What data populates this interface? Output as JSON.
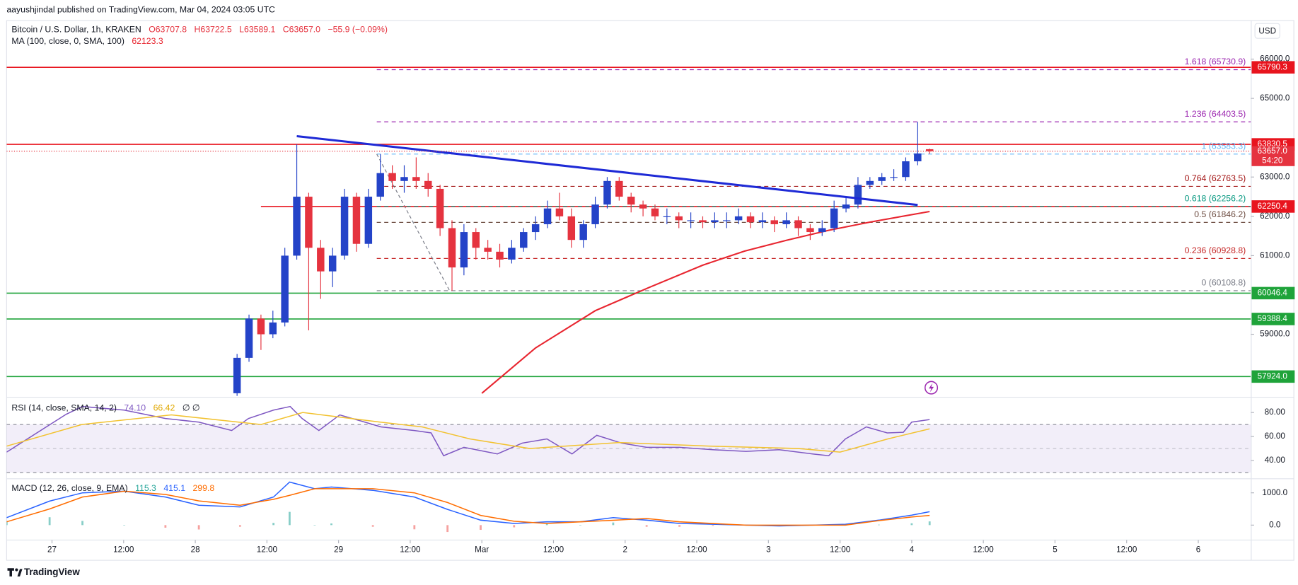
{
  "chart_data": [
    {
      "type": "candlestick",
      "publisher": "aayushjindal published on TradingView.com, Mar 04, 2024 03:05 UTC",
      "title": "Bitcoin / U.S. Dollar, 1h, KRAKEN",
      "ohlc_labels": [
        "O63707.8",
        "H63722.5",
        "L63589.1",
        "C63657.0"
      ],
      "change": "−55.9 (−0.09%)",
      "currency": "USD",
      "up_color": "#2443c8",
      "down_color": "#e5333f",
      "xlim": [
        -7.6,
        200.8
      ],
      "ylim": [
        57430,
        66970
      ],
      "xticks": [
        {
          "value": 0,
          "label": "27"
        },
        {
          "value": 12,
          "label": "12:00"
        },
        {
          "value": 24,
          "label": "28"
        },
        {
          "value": 36,
          "label": "12:00"
        },
        {
          "value": 48,
          "label": "29"
        },
        {
          "value": 60,
          "label": "12:00"
        },
        {
          "value": 72,
          "label": "Mar"
        },
        {
          "value": 84,
          "label": "12:00"
        },
        {
          "value": 96,
          "label": "2"
        },
        {
          "value": 108,
          "label": "12:00"
        },
        {
          "value": 120,
          "label": "3"
        },
        {
          "value": 132,
          "label": "12:00"
        },
        {
          "value": 144,
          "label": "4"
        },
        {
          "value": 156,
          "label": "12:00"
        },
        {
          "value": 168,
          "label": "5"
        },
        {
          "value": 180,
          "label": "12:00"
        },
        {
          "value": 192,
          "label": "6"
        }
      ],
      "yticks": [
        {
          "value": 66000,
          "label": "66000.0"
        },
        {
          "value": 65000,
          "label": "65000.0"
        },
        {
          "value": 63000,
          "label": "63000.0"
        },
        {
          "value": 62000,
          "label": "62000.0"
        },
        {
          "value": 61000,
          "label": "61000.0"
        },
        {
          "value": 59000,
          "label": "59000.0"
        }
      ],
      "grid": false,
      "x": [
        31,
        33,
        35,
        37,
        39,
        41,
        43,
        45,
        47,
        49,
        51,
        53,
        55,
        57,
        59,
        61,
        63,
        65,
        67,
        69,
        71,
        73,
        75,
        77,
        79,
        81,
        83,
        85,
        87,
        89,
        91,
        93,
        95,
        97,
        99,
        101,
        103,
        105,
        107,
        109,
        111,
        113,
        115,
        117,
        119,
        121,
        123,
        125,
        127,
        129,
        131,
        133,
        135,
        137,
        139,
        141,
        143,
        145,
        147
      ],
      "open": [
        57500,
        58400,
        59400,
        59000,
        59300,
        61000,
        62500,
        61200,
        60600,
        61000,
        62500,
        61300,
        62500,
        63100,
        62900,
        63000,
        62900,
        62700,
        61700,
        60700,
        61600,
        61200,
        61100,
        60900,
        61200,
        61600,
        61800,
        62200,
        62000,
        61400,
        61800,
        62300,
        62900,
        62500,
        62300,
        62200,
        62000,
        62000,
        61900,
        61900,
        61850,
        61900,
        61900,
        62000,
        61850,
        61900,
        61800,
        61900,
        61700,
        61600,
        61700,
        62200,
        62300,
        62800,
        62900,
        63000,
        63000,
        63400,
        63707.8
      ],
      "high": [
        58500,
        59500,
        59500,
        59600,
        61200,
        63830,
        62600,
        61400,
        61200,
        62700,
        62600,
        62700,
        63580,
        63300,
        63300,
        63500,
        63100,
        62800,
        61900,
        61800,
        61700,
        61400,
        61300,
        61400,
        61700,
        62000,
        62400,
        62600,
        62200,
        61900,
        62500,
        63000,
        63000,
        62600,
        62400,
        62300,
        62200,
        62100,
        62100,
        62000,
        62100,
        62100,
        62200,
        62100,
        62100,
        62000,
        62100,
        62000,
        61800,
        61900,
        62400,
        62500,
        63000,
        63000,
        63100,
        63200,
        63500,
        64400,
        63722.5
      ],
      "low": [
        57430,
        58300,
        58600,
        58900,
        59200,
        60900,
        59100,
        59900,
        60200,
        60900,
        61100,
        61200,
        62400,
        62700,
        62600,
        62700,
        62500,
        61500,
        60108.8,
        60500,
        60900,
        60900,
        60700,
        60800,
        61100,
        61400,
        61700,
        61900,
        61200,
        61200,
        61700,
        62200,
        62400,
        62100,
        62000,
        61900,
        61800,
        61700,
        61700,
        61700,
        61700,
        61700,
        61800,
        61700,
        61700,
        61600,
        61700,
        61500,
        61400,
        61500,
        61600,
        62100,
        62200,
        62700,
        62800,
        62900,
        62900,
        63300,
        63589.1
      ],
      "close": [
        58400,
        59400,
        59000,
        59300,
        61000,
        62500,
        61200,
        60600,
        61000,
        62500,
        61300,
        62500,
        63100,
        62900,
        63000,
        62900,
        62700,
        61700,
        60700,
        61600,
        61200,
        61100,
        60900,
        61200,
        61600,
        61800,
        62200,
        62000,
        61400,
        61800,
        62300,
        62900,
        62500,
        62300,
        62200,
        62000,
        62000,
        61900,
        61900,
        61850,
        61900,
        61900,
        62000,
        61850,
        61900,
        61800,
        61900,
        61700,
        61600,
        61700,
        62200,
        62300,
        62800,
        62900,
        63000,
        63000,
        63400,
        63600,
        63657
      ],
      "ma": {
        "name": "MA (100, close, 0, SMA, 100)",
        "color": "#e8252f",
        "x": [
          72,
          81,
          91,
          100,
          109,
          116,
          123,
          130,
          137,
          147
        ],
        "values": [
          57500,
          58653,
          59600,
          60189,
          60758,
          61116,
          61389,
          61642,
          61853,
          62123.3
        ]
      },
      "levels": [
        {
          "value": 65790.3,
          "label": "65790.3",
          "color": "#e8141e"
        },
        {
          "value": 63830.5,
          "label": "63830.5",
          "color": "#e8141e"
        },
        {
          "value": 62250.4,
          "label": "62250.4",
          "color": "#e8141e",
          "x_from": 35
        },
        {
          "value": 60046.4,
          "label": "60046.4",
          "color": "#1fa33a"
        },
        {
          "value": 59388.4,
          "label": "59388.4",
          "color": "#1fa33a"
        },
        {
          "value": 57924,
          "label": "57924.0",
          "color": "#1fa33a"
        }
      ],
      "current": {
        "value": 63657,
        "label": "63657.0",
        "countdown": "54:20",
        "color": "#e5333f"
      },
      "fib": {
        "start": 54.4,
        "anchor_x": [
          54.4,
          66.6
        ],
        "levels": [
          {
            "value": 65730.9,
            "label": "1.618 (65730.9)",
            "color": "#9c27b0"
          },
          {
            "value": 64403.5,
            "label": "1.236 (64403.5)",
            "color": "#9c27b0"
          },
          {
            "value": 63583.3,
            "label": "1 (63583.3)",
            "color": "#64b5f6"
          },
          {
            "value": 62763.5,
            "label": "0.764 (62763.5)",
            "color": "#a31515"
          },
          {
            "value": 62256.2,
            "label": "0.618 (62256.2)",
            "color": "#089981"
          },
          {
            "value": 61846.2,
            "label": "0.5 (61846.2)",
            "color": "#6d4c41"
          },
          {
            "value": 60928.8,
            "label": "0.236 (60928.8)",
            "color": "#c62828"
          },
          {
            "value": 60108.8,
            "label": "0 (60108.8)",
            "color": "#787b86"
          }
        ]
      },
      "trendline": {
        "x": [
          41,
          145
        ],
        "values": [
          64040,
          62290
        ],
        "color": "#1e2ad6"
      }
    },
    {
      "type": "line",
      "name": "RSI (14, close, SMA, 14, 2)",
      "extra": "∅ ∅",
      "xlim": [
        -7.6,
        200.8
      ],
      "ylim": [
        25.5,
        91.7
      ],
      "yticks": [
        {
          "value": 80,
          "label": "80.00"
        },
        {
          "value": 60,
          "label": "60.00"
        },
        {
          "value": 40,
          "label": "40.00"
        }
      ],
      "band": [
        30,
        70
      ],
      "middle": 50,
      "band_color": "#7e57c2",
      "series": [
        {
          "color": "#7e57c2",
          "last_label": "74.10",
          "x": [
            -7.6,
            2.4,
            5.1,
            12.1,
            19,
            24.6,
            30.1,
            32.9,
            37.1,
            39.9,
            41.9,
            44.7,
            48.2,
            52.4,
            55.1,
            60.7,
            63.5,
            65.6,
            69,
            74.6,
            78.75,
            82.9,
            87.1,
            91.25,
            95.4,
            99.6,
            105.1,
            110.7,
            116.25,
            121.8,
            127.4,
            130.1,
            132.9,
            136.4,
            139.9,
            142.6,
            144,
            147
          ],
          "values": [
            47,
            78.6,
            85,
            82,
            75,
            72,
            65,
            75,
            82,
            85,
            75,
            65,
            78,
            72,
            68,
            65,
            63,
            44,
            51,
            45.5,
            54.5,
            58,
            45.5,
            61,
            54.5,
            51,
            51,
            49,
            47.6,
            49,
            45.5,
            44,
            58,
            68,
            63,
            63.5,
            72,
            74.1
          ]
        },
        {
          "color": "#f2c230",
          "x": [
            -7.6,
            5,
            20,
            35,
            42,
            55,
            62,
            70,
            80,
            95,
            110,
            125,
            132,
            140,
            147
          ],
          "values": [
            52,
            70,
            78,
            70,
            80,
            72,
            68,
            58,
            50,
            55,
            52,
            50,
            47,
            58,
            66.42
          ]
        }
      ]
    },
    {
      "type": "line",
      "name": "MACD (12, 26, close, 9, EMA)",
      "xlim": [
        -7.6,
        200.8
      ],
      "ylim": [
        -436,
        1410
      ],
      "yticks": [
        {
          "value": 1000,
          "label": "1000.0"
        },
        {
          "value": 0,
          "label": "0.0"
        }
      ],
      "series": [
        {
          "style": "histogram",
          "color": "#26a69a",
          "negative_color": "#ef5350",
          "x": [
            -7.6,
            -0.4,
            5.1,
            12.1,
            19,
            24.6,
            31.5,
            37.1,
            39.8,
            44,
            46.8,
            53.75,
            60.7,
            66.25,
            71.8,
            77.4,
            82.9,
            88.5,
            94,
            99.6,
            105.1,
            110.7,
            116.25,
            121.8,
            127.4,
            132.9,
            138.5,
            144,
            147
          ],
          "values": [
            129,
            244,
            130,
            0,
            -80,
            -135,
            -51,
            70,
            410,
            0,
            52,
            -51,
            -130,
            -213,
            -146,
            -69,
            51,
            0,
            81,
            -51,
            -51,
            -24,
            0,
            -26,
            0,
            26,
            14,
            58,
            115.3
          ]
        },
        {
          "color": "#2962ff",
          "x": [
            -7.6,
            -0.4,
            5.1,
            12.1,
            19,
            24.6,
            31.5,
            37.1,
            39.8,
            44,
            46.8,
            53.75,
            60.7,
            66.25,
            71.8,
            77.4,
            82.9,
            88.5,
            94,
            99.6,
            105.1,
            110.7,
            116.25,
            121.8,
            127.4,
            132.9,
            138.5,
            144,
            147
          ],
          "values": [
            231,
            744,
            1000,
            1050,
            870,
            615,
            564,
            870,
            1333,
            1128,
            1180,
            1077,
            870,
            487,
            154,
            51,
            102,
            102,
            231,
            154,
            51,
            26,
            0,
            -26,
            0,
            26,
            154,
            308,
            415.1
          ]
        },
        {
          "color": "#ff6d00",
          "x": [
            -7.6,
            -0.4,
            5.1,
            12.1,
            19,
            24.6,
            31.5,
            37.1,
            39.8,
            44,
            46.8,
            53.75,
            60.7,
            66.25,
            71.8,
            77.4,
            82.9,
            88.5,
            94,
            99.6,
            105.1,
            110.7,
            116.25,
            121.8,
            127.4,
            132.9,
            138.5,
            144,
            147
          ],
          "values": [
            102,
            500,
            870,
            1050,
            950,
            750,
            615,
            800,
            923,
            1128,
            1128,
            1128,
            1000,
            700,
            300,
            120,
            51,
            102,
            150,
            205,
            102,
            50,
            0,
            0,
            0,
            0,
            140,
            250,
            299.8
          ]
        }
      ]
    }
  ],
  "footer": {
    "brand": "TradingView"
  }
}
